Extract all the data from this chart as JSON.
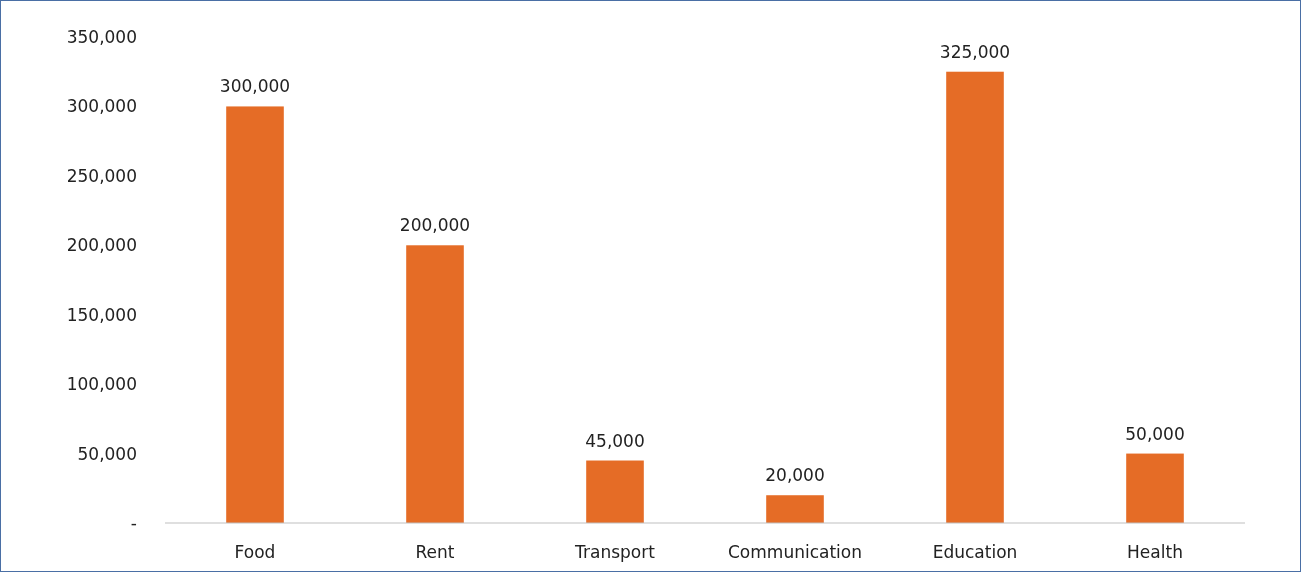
{
  "chart_data": {
    "type": "bar",
    "categories": [
      "Food",
      "Rent",
      "Transport",
      "Communication",
      "Education",
      "Health"
    ],
    "values": [
      300000,
      200000,
      45000,
      20000,
      325000,
      50000
    ],
    "color": "#e56c26",
    "ylim": [
      0,
      350000
    ],
    "yticks": [
      {
        "value": 0,
        "label": "-"
      },
      {
        "value": 50000,
        "label": "50,000"
      },
      {
        "value": 100000,
        "label": "100,000"
      },
      {
        "value": 150000,
        "label": "150,000"
      },
      {
        "value": 200000,
        "label": "200,000"
      },
      {
        "value": 250000,
        "label": "250,000"
      },
      {
        "value": 300000,
        "label": "300,000"
      },
      {
        "value": 350000,
        "label": "350,000"
      }
    ],
    "value_labels": [
      "300,000",
      "200,000",
      "45,000",
      "20,000",
      "325,000",
      "50,000"
    ],
    "grid": false
  }
}
